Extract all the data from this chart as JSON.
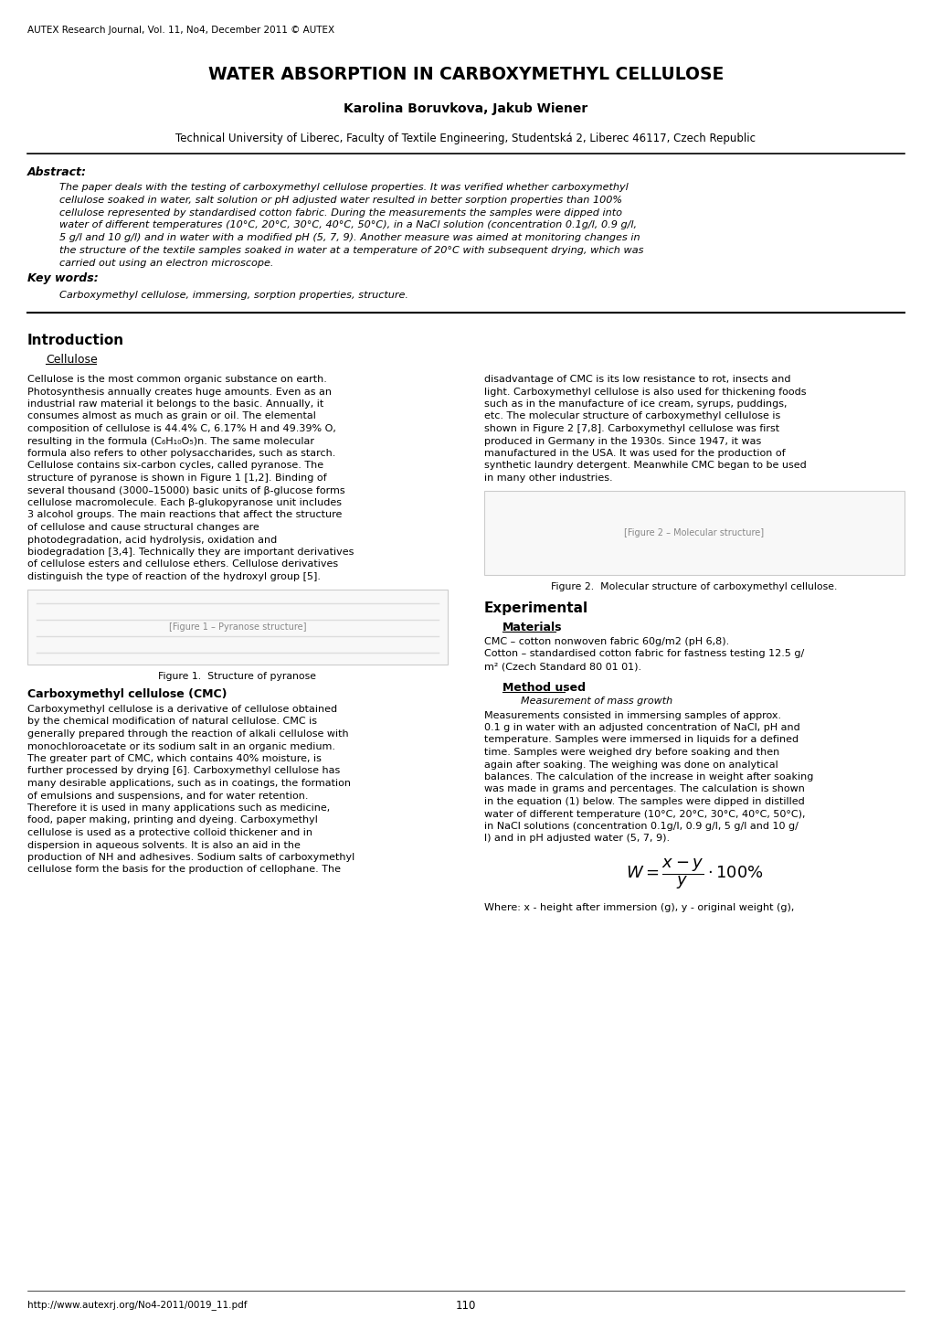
{
  "journal_header": "AUTEX Research Journal, Vol. 11, No4, December 2011 © AUTEX",
  "title": "WATER ABSORPTION IN CARBOXYMETHYL CELLULOSE",
  "authors": "Karolina Boruvkova, Jakub Wiener",
  "affiliation": "Technical University of Liberec, Faculty of Textile Engineering, Studentská 2, Liberec 46117, Czech Republic",
  "abstract_label": "Abstract:",
  "keywords_label": "Key words:",
  "keywords_text": "Carboxymethyl cellulose, immersing, sorption properties, structure.",
  "intro_header": "Introduction",
  "cellulose_subheader": "Cellulose",
  "figure1_caption": "Figure 1.  Structure of pyranose",
  "cmc_subheader": "Carboxymethyl cellulose (CMC)",
  "figure2_caption": "Figure 2.  Molecular structure of carboxymethyl cellulose.",
  "experimental_header": "Experimental",
  "materials_subheader": "Materials",
  "measurement_italic": "Measurement of mass growth",
  "method_subheader": "Method used",
  "equation_note": "Where: x - height after immersion (g), y - original weight (g),",
  "footer_url": "http://www.autexrj.org/No4-2011/0019_11.pdf",
  "footer_page": "110",
  "bg_color": "#ffffff",
  "text_color": "#000000",
  "abstract_lines": [
    "The paper deals with the testing of carboxymethyl cellulose properties. It was verified whether carboxymethyl",
    "cellulose soaked in water, salt solution or pH adjusted water resulted in better sorption properties than 100%",
    "cellulose represented by standardised cotton fabric. During the measurements the samples were dipped into",
    "water of different temperatures (10°C, 20°C, 30°C, 40°C, 50°C), in a NaCl solution (concentration 0.1g/l, 0.9 g/l,",
    "5 g/l and 10 g/l) and in water with a modified pH (5, 7, 9). Another measure was aimed at monitoring changes in",
    "the structure of the textile samples soaked in water at a temperature of 20°C with subsequent drying, which was",
    "carried out using an electron microscope."
  ],
  "col1_lines": [
    "Cellulose is the most common organic substance on earth.",
    "Photosynthesis annually creates huge amounts. Even as an",
    "industrial raw material it belongs to the basic. Annually, it",
    "consumes almost as much as grain or oil. The elemental",
    "composition of cellulose is 44.4% C, 6.17% H and 49.39% O,",
    "resulting in the formula (C₆H₁₀O₅)n. The same molecular",
    "formula also refers to other polysaccharides, such as starch.",
    "Cellulose contains six-carbon cycles, called pyranose. The",
    "structure of pyranose is shown in Figure 1 [1,2]. Binding of",
    "several thousand (3000–15000) basic units of β-glucose forms",
    "cellulose macromolecule. Each β-glukopyranose unit includes",
    "3 alcohol groups. The main reactions that affect the structure",
    "of cellulose and cause structural changes are",
    "photodegradation, acid hydrolysis, oxidation and",
    "biodegradation [3,4]. Technically they are important derivatives",
    "of cellulose esters and cellulose ethers. Cellulose derivatives",
    "distinguish the type of reaction of the hydroxyl group [5]."
  ],
  "col1_para2_lines": [
    "Carboxymethyl cellulose is a derivative of cellulose obtained",
    "by the chemical modification of natural cellulose. CMC is",
    "generally prepared through the reaction of alkali cellulose with",
    "monochloroacetate or its sodium salt in an organic medium.",
    "The greater part of CMC, which contains 40% moisture, is",
    "further processed by drying [6]. Carboxymethyl cellulose has",
    "many desirable applications, such as in coatings, the formation",
    "of emulsions and suspensions, and for water retention.",
    "Therefore it is used in many applications such as medicine,",
    "food, paper making, printing and dyeing. Carboxymethyl",
    "cellulose is used as a protective colloid thickener and in",
    "dispersion in aqueous solvents. It is also an aid in the",
    "production of NH and adhesives. Sodium salts of carboxymethyl",
    "cellulose form the basis for the production of cellophane. The"
  ],
  "col2_lines1": [
    "disadvantage of CMC is its low resistance to rot, insects and",
    "light. Carboxymethyl cellulose is also used for thickening foods",
    "such as in the manufacture of ice cream, syrups, puddings,",
    "etc. The molecular structure of carboxymethyl cellulose is",
    "shown in Figure 2 [7,8]. Carboxymethyl cellulose was first",
    "produced in Germany in the 1930s. Since 1947, it was",
    "manufactured in the USA. It was used for the production of",
    "synthetic laundry detergent. Meanwhile CMC began to be used",
    "in many other industries."
  ],
  "materials_lines": [
    "CMC – cotton nonwoven fabric 60g/m2 (pH 6,8).",
    "Cotton – standardised cotton fabric for fastness testing 12.5 g/",
    "m² (Czech Standard 80 01 01)."
  ],
  "method_lines": [
    "Measurements consisted in immersing samples of approx.",
    "0.1 g in water with an adjusted concentration of NaCl, pH and",
    "temperature. Samples were immersed in liquids for a defined",
    "time. Samples were weighed dry before soaking and then",
    "again after soaking. The weighing was done on analytical",
    "balances. The calculation of the increase in weight after soaking",
    "was made in grams and percentages. The calculation is shown",
    "in the equation (1) below. The samples were dipped in distilled",
    "water of different temperature (10°C, 20°C, 30°C, 40°C, 50°C),",
    "in NaCl solutions (concentration 0.1g/l, 0.9 g/l, 5 g/l and 10 g/",
    "l) and in pH adjusted water (5, 7, 9)."
  ]
}
